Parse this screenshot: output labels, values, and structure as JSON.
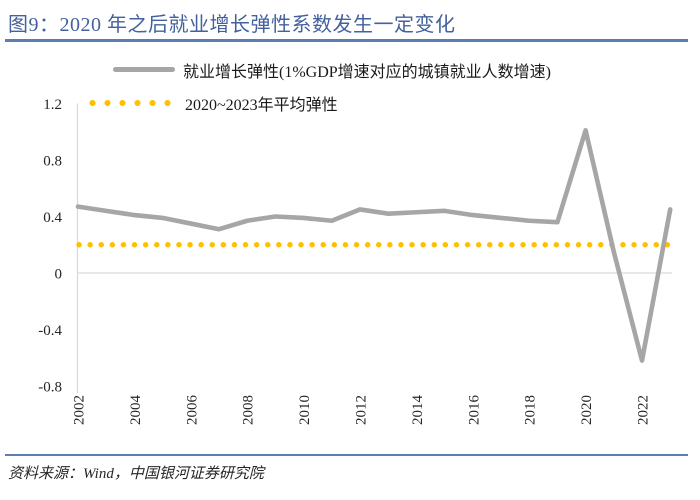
{
  "header": {
    "title": "图9：2020 年之后就业增长弹性系数发生一定变化"
  },
  "legend": {
    "items": [
      {
        "label": "就业增长弹性(1%GDP增速对应的城镇就业人数增速)",
        "swatch": "gray-solid-line"
      },
      {
        "label": "2020~2023年平均弹性",
        "swatch": "gold-dotted-line"
      }
    ]
  },
  "chart_data": {
    "type": "line",
    "title": "",
    "x": [
      2002,
      2003,
      2004,
      2005,
      2006,
      2007,
      2008,
      2009,
      2010,
      2011,
      2012,
      2013,
      2014,
      2015,
      2016,
      2017,
      2018,
      2019,
      2020,
      2021,
      2022,
      2023
    ],
    "series": [
      {
        "name": "就业增长弹性(1%GDP增速对应的城镇就业人数增速)",
        "style": "solid",
        "values": [
          0.47,
          0.44,
          0.41,
          0.39,
          0.35,
          0.31,
          0.37,
          0.4,
          0.39,
          0.37,
          0.45,
          0.42,
          0.43,
          0.44,
          0.41,
          0.39,
          0.37,
          0.36,
          1.01,
          0.15,
          -0.62,
          0.45
        ]
      },
      {
        "name": "2020~2023年平均弹性",
        "style": "dotted",
        "constant_value": 0.2
      }
    ],
    "ylim": [
      -0.8,
      1.2
    ],
    "yticks": [
      1.2,
      0.8,
      0.4,
      0,
      -0.4,
      -0.8
    ],
    "xticks": [
      2002,
      2004,
      2006,
      2008,
      2010,
      2012,
      2014,
      2016,
      2018,
      2020,
      2022
    ],
    "x_tick_rotation": -90,
    "grid": "zero-line-only",
    "legend_position": "top"
  },
  "footer": {
    "source": "资料来源：Wind，中国银河证券研究院"
  },
  "colors": {
    "title_blue": "#44619D",
    "rule_blue": "#5B7DB1",
    "series_gray": "#A6A6A6",
    "average_gold": "#FFC000",
    "axis_gray": "#D9D9D9",
    "tick_text": "#262626"
  }
}
